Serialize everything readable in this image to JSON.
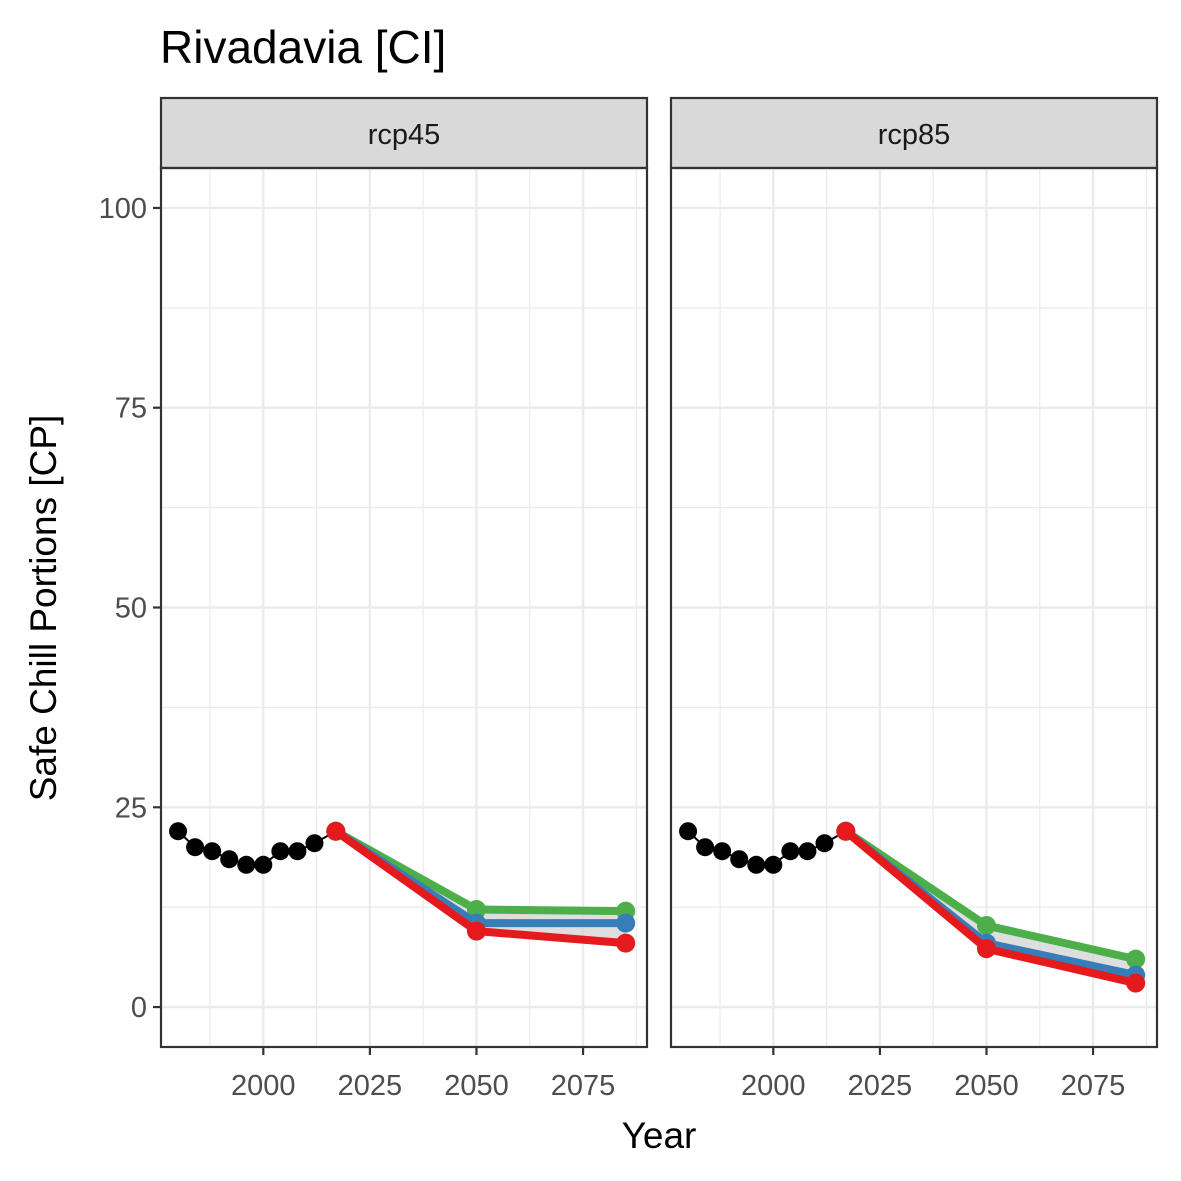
{
  "chart_data": {
    "type": "line",
    "title": "Rivadavia [CI]",
    "xlabel": "Year",
    "ylabel": "Safe Chill Portions [CP]",
    "xlim": [
      1976,
      2090
    ],
    "ylim": [
      -5,
      105
    ],
    "x_ticks": [
      2000,
      2025,
      2050,
      2075
    ],
    "y_ticks": [
      0,
      25,
      50,
      75,
      100
    ],
    "grid": true,
    "colors": {
      "historic": "#000000",
      "optimistic": "#4DAF4A",
      "intermediate": "#377EB8",
      "pessimistic": "#E41A1C",
      "ribbon": "#D3D3D3"
    },
    "panels": [
      {
        "label": "rcp45",
        "historic": {
          "x": [
            1980,
            1984,
            1988,
            1992,
            1996,
            2000,
            2004,
            2008,
            2012,
            2017
          ],
          "y": [
            22,
            20,
            19.5,
            18.5,
            17.8,
            17.8,
            19.5,
            19.5,
            20.5,
            22
          ]
        },
        "series": [
          {
            "key": "optimistic",
            "x": [
              2017,
              2050,
              2085
            ],
            "y": [
              22,
              12.2,
              12
            ]
          },
          {
            "key": "intermediate",
            "x": [
              2017,
              2050,
              2085
            ],
            "y": [
              22,
              10.5,
              10.5
            ]
          },
          {
            "key": "pessimistic",
            "x": [
              2017,
              2050,
              2085
            ],
            "y": [
              22,
              9.5,
              8
            ]
          }
        ]
      },
      {
        "label": "rcp85",
        "historic": {
          "x": [
            1980,
            1984,
            1988,
            1992,
            1996,
            2000,
            2004,
            2008,
            2012,
            2017
          ],
          "y": [
            22,
            20,
            19.5,
            18.5,
            17.8,
            17.8,
            19.5,
            19.5,
            20.5,
            22
          ]
        },
        "series": [
          {
            "key": "optimistic",
            "x": [
              2017,
              2050,
              2085
            ],
            "y": [
              22,
              10.2,
              6
            ]
          },
          {
            "key": "intermediate",
            "x": [
              2017,
              2050,
              2085
            ],
            "y": [
              22,
              8,
              4
            ]
          },
          {
            "key": "pessimistic",
            "x": [
              2017,
              2050,
              2085
            ],
            "y": [
              22,
              7.3,
              3
            ]
          }
        ]
      }
    ]
  }
}
